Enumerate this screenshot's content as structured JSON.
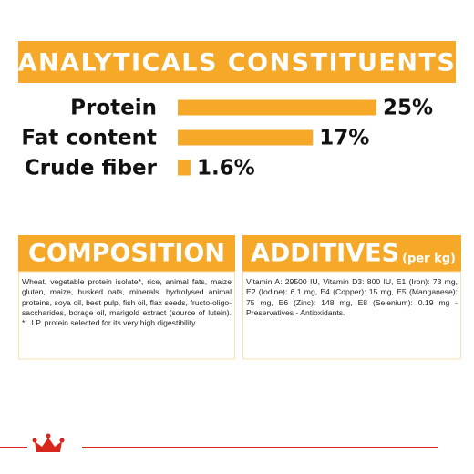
{
  "chart_data": {
    "type": "bar",
    "title": "ANALYTICALS CONSTITUENTS",
    "categories": [
      "Protein",
      "Fat content",
      "Crude fiber"
    ],
    "values": [
      25,
      17,
      1.6
    ],
    "value_labels": [
      "25%",
      "17%",
      "1.6%"
    ],
    "color": "#f6a828"
  },
  "composition": {
    "title": "COMPOSITION",
    "text": "Wheat, vegetable protein isolate*, rice, animal fats, maize gluten, maize, husked oats, minerals, hydrolysed animal proteins, soya oil, beet pulp, fish oil, flax seeds, fructo-oligo-saccharides, borage oil, marigold extract (source of lutein). *L.I.P. protein selected for its very high digestibility."
  },
  "additives": {
    "title": "ADDITIVES",
    "unit": "(per kg)",
    "text": "Vitamin A: 29500 IU, Vitamin D3: 800 IU, E1 (Iron): 73 mg, E2 (Iodine): 6.1 mg, E4 (Copper): 15 mg, E5 (Manganese): 75 mg, E6 (Zinc): 148 mg, E8 (Selenium): 0.19 mg - Preservatives - Antioxidants."
  }
}
